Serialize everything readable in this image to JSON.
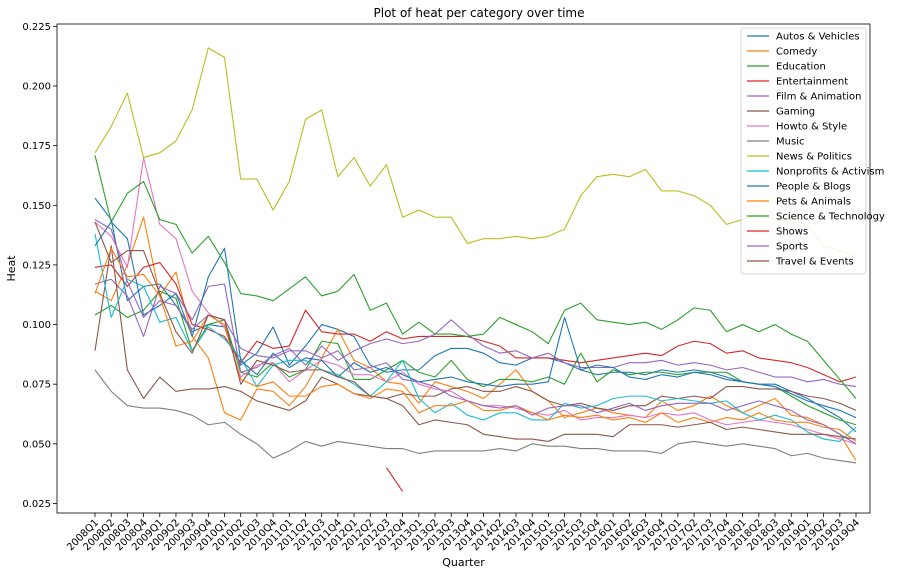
{
  "chart_data": {
    "type": "line",
    "title": "Plot of heat per category over time",
    "xlabel": "Quarter",
    "ylabel": "Heat",
    "ylim": [
      0.021,
      0.226
    ],
    "yticks": [
      0.025,
      0.05,
      0.075,
      0.1,
      0.125,
      0.15,
      0.175,
      0.2,
      0.225
    ],
    "ytick_labels": [
      "0.025",
      "0.050",
      "0.075",
      "0.100",
      "0.125",
      "0.150",
      "0.175",
      "0.200",
      "0.225"
    ],
    "grid": false,
    "legend_position": "top-right",
    "categories": [
      "2008Q1",
      "2008Q2",
      "2008Q3",
      "2008Q4",
      "2009Q1",
      "2009Q2",
      "2009Q3",
      "2009Q4",
      "2010Q1",
      "2010Q2",
      "2010Q3",
      "2010Q4",
      "2011Q1",
      "2011Q2",
      "2011Q3",
      "2011Q4",
      "2012Q1",
      "2012Q2",
      "2012Q3",
      "2012Q4",
      "2013Q1",
      "2013Q2",
      "2013Q3",
      "2013Q4",
      "2014Q1",
      "2014Q2",
      "2014Q3",
      "2014Q4",
      "2015Q1",
      "2015Q2",
      "2015Q3",
      "2015Q4",
      "2016Q1",
      "2016Q2",
      "2016Q3",
      "2016Q4",
      "2017Q1",
      "2017Q2",
      "2017Q3",
      "2017Q4",
      "2018Q1",
      "2018Q2",
      "2018Q3",
      "2018Q4",
      "2019Q1",
      "2019Q2",
      "2019Q3",
      "2019Q4"
    ],
    "series": [
      {
        "name": "Autos & Vehicles",
        "color": "#1f77b4",
        "values": [
          0.153,
          0.144,
          0.11,
          0.116,
          0.117,
          0.108,
          0.097,
          0.1,
          0.099,
          0.083,
          0.088,
          0.099,
          0.083,
          0.091,
          0.1,
          0.098,
          0.095,
          0.083,
          0.08,
          0.081,
          0.081,
          0.087,
          0.09,
          0.09,
          0.088,
          0.084,
          0.083,
          0.086,
          0.086,
          0.084,
          0.081,
          0.079,
          0.08,
          0.08,
          0.079,
          0.081,
          0.08,
          0.081,
          0.08,
          0.078,
          0.076,
          0.075,
          0.075,
          0.072,
          0.069,
          0.065,
          0.061,
          0.055
        ]
      },
      {
        "name": "Comedy",
        "color": "#ff7f0e",
        "values": [
          0.114,
          0.11,
          0.125,
          0.145,
          0.112,
          0.122,
          0.095,
          0.086,
          0.063,
          0.06,
          0.073,
          0.072,
          0.066,
          0.074,
          0.086,
          0.098,
          0.085,
          0.082,
          0.076,
          0.075,
          0.067,
          0.076,
          0.074,
          0.072,
          0.069,
          0.075,
          0.081,
          0.072,
          0.068,
          0.061,
          0.063,
          0.065,
          0.063,
          0.062,
          0.061,
          0.068,
          0.064,
          0.066,
          0.07,
          0.066,
          0.063,
          0.066,
          0.069,
          0.062,
          0.061,
          0.058,
          0.054,
          0.043
        ]
      },
      {
        "name": "Education",
        "color": "#2ca02c",
        "values": [
          0.104,
          0.108,
          0.103,
          0.106,
          0.114,
          0.111,
          0.089,
          0.1,
          0.102,
          0.08,
          0.078,
          0.084,
          0.078,
          0.081,
          0.093,
          0.092,
          0.077,
          0.077,
          0.081,
          0.085,
          0.08,
          0.078,
          0.085,
          0.077,
          0.074,
          0.077,
          0.077,
          0.076,
          0.078,
          0.075,
          0.088,
          0.076,
          0.081,
          0.079,
          0.08,
          0.08,
          0.079,
          0.08,
          0.08,
          0.08,
          0.076,
          0.075,
          0.074,
          0.07,
          0.066,
          0.063,
          0.06,
          0.058
        ]
      },
      {
        "name": "Entertainment",
        "color": "#d62728",
        "values": [
          0.124,
          0.125,
          0.116,
          0.124,
          0.126,
          0.117,
          0.1,
          0.098,
          0.095,
          0.084,
          0.093,
          0.09,
          0.091,
          0.106,
          0.097,
          0.096,
          0.096,
          0.093,
          0.097,
          0.094,
          0.095,
          0.095,
          0.095,
          0.095,
          0.093,
          0.091,
          0.086,
          0.086,
          0.086,
          0.085,
          0.084,
          0.085,
          0.086,
          0.087,
          0.088,
          0.087,
          0.091,
          0.093,
          0.092,
          0.088,
          0.089,
          0.086,
          0.085,
          0.084,
          0.082,
          0.079,
          0.076,
          0.078
        ]
      },
      {
        "name": "Film & Animation",
        "color": "#9467bd",
        "values": [
          0.117,
          0.119,
          0.112,
          0.095,
          0.116,
          0.113,
          0.102,
          0.116,
          0.117,
          0.08,
          0.082,
          0.087,
          0.09,
          0.083,
          0.091,
          0.085,
          0.089,
          0.092,
          0.094,
          0.092,
          0.093,
          0.096,
          0.102,
          0.096,
          0.091,
          0.088,
          0.089,
          0.086,
          0.088,
          0.084,
          0.082,
          0.082,
          0.082,
          0.084,
          0.084,
          0.085,
          0.083,
          0.084,
          0.083,
          0.081,
          0.082,
          0.08,
          0.078,
          0.078,
          0.076,
          0.077,
          0.075,
          0.074
        ]
      },
      {
        "name": "Gaming",
        "color": "#8c564b",
        "values": [
          0.089,
          0.133,
          0.081,
          0.069,
          0.078,
          0.072,
          0.073,
          0.073,
          0.074,
          0.072,
          0.068,
          0.066,
          0.064,
          0.068,
          0.078,
          0.075,
          0.071,
          0.07,
          0.069,
          0.071,
          0.07,
          0.07,
          0.073,
          0.074,
          0.072,
          0.072,
          0.074,
          0.072,
          0.068,
          0.066,
          0.067,
          0.065,
          0.064,
          0.066,
          0.066,
          0.07,
          0.069,
          0.07,
          0.069,
          0.074,
          0.074,
          0.073,
          0.073,
          0.072,
          0.07,
          0.069,
          0.067,
          0.064
        ]
      },
      {
        "name": "Howto & Style",
        "color": "#e377c2",
        "values": [
          0.143,
          0.137,
          0.124,
          0.17,
          0.142,
          0.136,
          0.114,
          0.105,
          0.099,
          0.078,
          0.083,
          0.084,
          0.076,
          0.081,
          0.085,
          0.083,
          0.079,
          0.079,
          0.076,
          0.08,
          0.075,
          0.073,
          0.072,
          0.068,
          0.066,
          0.066,
          0.065,
          0.063,
          0.062,
          0.064,
          0.06,
          0.061,
          0.061,
          0.062,
          0.061,
          0.063,
          0.062,
          0.063,
          0.06,
          0.058,
          0.059,
          0.06,
          0.059,
          0.058,
          0.056,
          0.054,
          0.052,
          0.05
        ]
      },
      {
        "name": "Music",
        "color": "#7f7f7f",
        "values": [
          0.081,
          0.072,
          0.066,
          0.065,
          0.065,
          0.064,
          0.062,
          0.058,
          0.059,
          0.054,
          0.05,
          0.044,
          0.047,
          0.051,
          0.049,
          0.051,
          0.05,
          0.049,
          0.048,
          0.048,
          0.046,
          0.047,
          0.047,
          0.047,
          0.047,
          0.048,
          0.047,
          0.05,
          0.049,
          0.049,
          0.048,
          0.048,
          0.047,
          0.047,
          0.047,
          0.046,
          0.05,
          0.051,
          0.05,
          0.049,
          0.05,
          0.049,
          0.048,
          0.045,
          0.046,
          0.044,
          0.043,
          0.042
        ]
      },
      {
        "name": "News & Politics",
        "color": "#bcbd22",
        "values": [
          0.172,
          0.183,
          0.197,
          0.17,
          0.172,
          0.177,
          0.19,
          0.216,
          0.212,
          0.161,
          0.161,
          0.148,
          0.16,
          0.186,
          0.19,
          0.162,
          0.17,
          0.158,
          0.167,
          0.145,
          0.148,
          0.145,
          0.145,
          0.134,
          0.136,
          0.136,
          0.137,
          0.136,
          0.137,
          0.14,
          0.154,
          0.162,
          0.163,
          0.162,
          0.165,
          0.156,
          0.156,
          0.154,
          0.15,
          0.142,
          0.144,
          0.146,
          0.144,
          0.143,
          0.142,
          0.133,
          0.131,
          0.129
        ]
      },
      {
        "name": "Nonprofits & Activism",
        "color": "#17becf",
        "values": [
          0.138,
          0.103,
          0.119,
          0.116,
          0.101,
          0.103,
          0.089,
          0.099,
          0.094,
          0.086,
          0.074,
          0.083,
          0.085,
          0.085,
          0.081,
          0.079,
          0.075,
          0.07,
          0.076,
          0.085,
          0.069,
          0.063,
          0.067,
          0.062,
          0.06,
          0.063,
          0.063,
          0.06,
          0.06,
          0.067,
          0.065,
          0.066,
          0.069,
          0.07,
          0.07,
          0.068,
          0.069,
          0.068,
          0.067,
          0.068,
          0.063,
          0.06,
          0.062,
          0.06,
          0.055,
          0.052,
          0.051,
          0.057
        ]
      },
      {
        "name": "People & Blogs",
        "color": "#1f77b4",
        "values": [
          0.133,
          0.143,
          0.136,
          0.104,
          0.108,
          0.113,
          0.095,
          0.12,
          0.132,
          0.085,
          0.079,
          0.088,
          0.082,
          0.086,
          0.085,
          0.078,
          0.084,
          0.08,
          0.082,
          0.079,
          0.076,
          0.077,
          0.078,
          0.076,
          0.075,
          0.074,
          0.075,
          0.075,
          0.076,
          0.103,
          0.081,
          0.083,
          0.082,
          0.078,
          0.077,
          0.079,
          0.078,
          0.08,
          0.079,
          0.077,
          0.076,
          0.075,
          0.074,
          0.071,
          0.068,
          0.066,
          0.064,
          0.061
        ]
      },
      {
        "name": "Pets & Animals",
        "color": "#ff7f0e",
        "values": [
          0.113,
          0.132,
          0.12,
          0.121,
          0.112,
          0.091,
          0.093,
          0.104,
          0.1,
          0.077,
          0.074,
          0.076,
          0.07,
          0.07,
          0.074,
          0.075,
          0.071,
          0.069,
          0.073,
          0.072,
          0.063,
          0.066,
          0.066,
          0.068,
          0.064,
          0.064,
          0.066,
          0.063,
          0.06,
          0.062,
          0.061,
          0.062,
          0.06,
          0.061,
          0.059,
          0.063,
          0.059,
          0.061,
          0.059,
          0.061,
          0.06,
          0.063,
          0.06,
          0.059,
          0.059,
          0.057,
          0.056,
          0.051
        ]
      },
      {
        "name": "Science & Technology",
        "color": "#2ca02c",
        "values": [
          0.171,
          0.143,
          0.155,
          0.16,
          0.144,
          0.142,
          0.13,
          0.137,
          0.126,
          0.113,
          0.112,
          0.11,
          0.115,
          0.12,
          0.112,
          0.114,
          0.121,
          0.106,
          0.109,
          0.096,
          0.101,
          0.096,
          0.096,
          0.095,
          0.096,
          0.103,
          0.1,
          0.097,
          0.092,
          0.106,
          0.109,
          0.102,
          0.101,
          0.1,
          0.101,
          0.098,
          0.102,
          0.107,
          0.106,
          0.097,
          0.1,
          0.097,
          0.1,
          0.096,
          0.093,
          0.085,
          0.077,
          0.069
        ]
      },
      {
        "name": "Shows",
        "color": "#d62728",
        "values": [
          null,
          null,
          null,
          null,
          null,
          null,
          null,
          null,
          null,
          null,
          null,
          null,
          null,
          null,
          null,
          null,
          null,
          null,
          0.04,
          0.03,
          null,
          null,
          null,
          null,
          null,
          null,
          null,
          null,
          null,
          null,
          null,
          null,
          null,
          null,
          null,
          null,
          null,
          null,
          null,
          null,
          null,
          null,
          null,
          null,
          null,
          null,
          null,
          null
        ]
      },
      {
        "name": "Sports",
        "color": "#9467bd",
        "values": [
          0.144,
          0.14,
          0.118,
          0.103,
          0.11,
          0.108,
          0.098,
          0.104,
          0.102,
          0.09,
          0.087,
          0.086,
          0.089,
          0.089,
          0.086,
          0.089,
          0.081,
          0.082,
          0.084,
          0.077,
          0.076,
          0.074,
          0.07,
          0.068,
          0.066,
          0.065,
          0.066,
          0.062,
          0.065,
          0.066,
          0.066,
          0.063,
          0.065,
          0.067,
          0.064,
          0.066,
          0.067,
          0.067,
          0.067,
          0.064,
          0.066,
          0.068,
          0.066,
          0.064,
          0.06,
          0.058,
          0.054,
          0.05
        ]
      },
      {
        "name": "Travel & Events",
        "color": "#8c564b",
        "values": [
          0.143,
          0.126,
          0.131,
          0.131,
          0.113,
          0.097,
          0.088,
          0.104,
          0.102,
          0.075,
          0.085,
          0.083,
          0.08,
          0.081,
          0.081,
          0.078,
          0.076,
          0.07,
          0.069,
          0.066,
          0.058,
          0.06,
          0.059,
          0.058,
          0.054,
          0.053,
          0.052,
          0.052,
          0.051,
          0.054,
          0.054,
          0.054,
          0.053,
          0.058,
          0.058,
          0.058,
          0.057,
          0.058,
          0.059,
          0.056,
          0.057,
          0.056,
          0.055,
          0.054,
          0.054,
          0.054,
          0.053,
          0.052
        ]
      }
    ]
  }
}
